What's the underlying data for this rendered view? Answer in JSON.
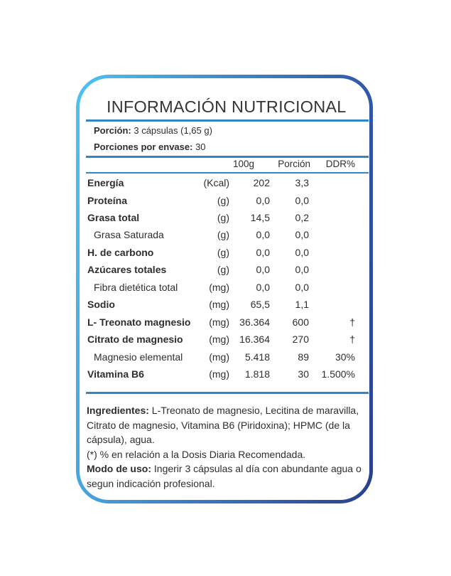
{
  "label": {
    "title": "INFORMACIÓN NUTRICIONAL",
    "serving_label": "Porción:",
    "serving_value": "3 cápsulas (1,65 g)",
    "servings_label": "Porciones por envase:",
    "servings_value": "30",
    "col_headers": {
      "per100": "100g",
      "portion": "Porción",
      "ddr": "DDR%"
    },
    "rows": [
      {
        "name": "Energía",
        "unit": "(Kcal)",
        "per100": "202",
        "portion": "3,3",
        "ddr": ""
      },
      {
        "name": "Proteína",
        "unit": "(g)",
        "per100": "0,0",
        "portion": "0,0",
        "ddr": ""
      },
      {
        "name": "Grasa total",
        "unit": "(g)",
        "per100": "14,5",
        "portion": "0,2",
        "ddr": ""
      },
      {
        "name": "Grasa Saturada",
        "unit": "(g)",
        "per100": "0,0",
        "portion": "0,0",
        "ddr": ""
      },
      {
        "name": "H. de carbono",
        "unit": "(g)",
        "per100": "0,0",
        "portion": "0,0",
        "ddr": ""
      },
      {
        "name": "Azúcares totales",
        "unit": "(g)",
        "per100": "0,0",
        "portion": "0,0",
        "ddr": ""
      },
      {
        "name": "Fibra dietética total",
        "unit": "(mg)",
        "per100": "0,0",
        "portion": "0,0",
        "ddr": ""
      },
      {
        "name": "Sodio",
        "unit": "(mg)",
        "per100": "65,5",
        "portion": "1,1",
        "ddr": ""
      },
      {
        "name": "L- Treonato magnesio",
        "unit": "(mg)",
        "per100": "36.364",
        "portion": "600",
        "ddr": "†"
      },
      {
        "name": "Citrato de magnesio",
        "unit": "(mg)",
        "per100": "16.364",
        "portion": "270",
        "ddr": "†"
      },
      {
        "name": "Magnesio elemental",
        "unit": "(mg)",
        "per100": "5.418",
        "portion": "89",
        "ddr": "30%"
      },
      {
        "name": "Vitamina B6",
        "unit": "(mg)",
        "per100": "1.818",
        "portion": "30",
        "ddr": "1.500%"
      }
    ],
    "ingredients_label": "Ingredientes:",
    "ingredients_text": "L-Treonato de magnesio, Lecitina de maravilla, Citrato de magnesio, Vitamina B6 (Piridoxina); HPMC (de la cápsula), agua.",
    "ddr_note": "(*) % en relación a la Dosis Diaria Recomendada.",
    "usage_label": "Modo de uso:",
    "usage_text": "Ingerir 3 cápsulas al día con abundante agua o segun indicación profesional."
  },
  "colors": {
    "frame_start": "#4ec3f2",
    "frame_end": "#2a3f8f",
    "rule": "#2f86c8",
    "text": "#2e2e2e"
  }
}
